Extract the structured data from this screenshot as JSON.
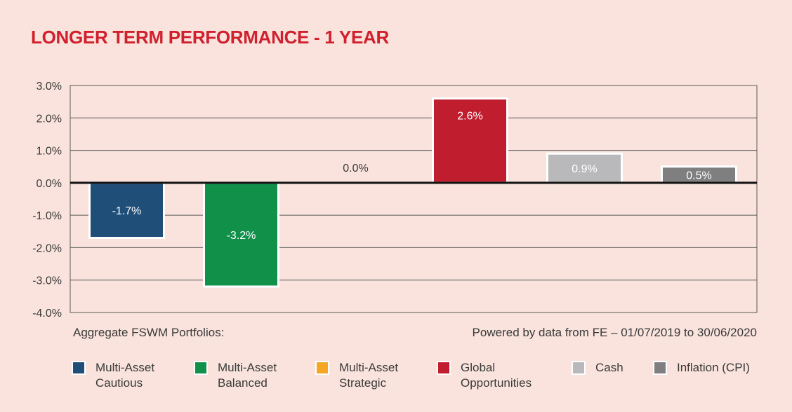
{
  "title": "LONGER TERM PERFORMANCE - 1 YEAR",
  "footer": {
    "left": "Aggregate FSWM Portfolios:",
    "right": "Powered by data from FE – 01/07/2019 to 30/06/2020"
  },
  "legend": [
    {
      "label_line1": "Multi-Asset",
      "label_line2": "Cautious",
      "color": "#1f4e79"
    },
    {
      "label_line1": "Multi-Asset",
      "label_line2": "Balanced",
      "color": "#11904a"
    },
    {
      "label_line1": "Multi-Asset",
      "label_line2": "Strategic",
      "color": "#f5a623"
    },
    {
      "label_line1": "Global",
      "label_line2": "Opportunities",
      "color": "#c01d2e"
    },
    {
      "label_line1": "Cash",
      "label_line2": "",
      "color": "#b9b9bb"
    },
    {
      "label_line1": "Inflation (CPI)",
      "label_line2": "",
      "color": "#7f7f7f"
    }
  ],
  "chart_data": {
    "type": "bar",
    "title": "LONGER TERM PERFORMANCE - 1 YEAR",
    "categories": [
      "Multi-Asset Cautious",
      "Multi-Asset Balanced",
      "Multi-Asset Strategic",
      "Global Opportunities",
      "Cash",
      "Inflation (CPI)"
    ],
    "values": [
      -1.7,
      -3.2,
      0.0,
      2.6,
      0.9,
      0.5
    ],
    "data_labels": [
      "-1.7%",
      "-3.2%",
      "0.0%",
      "2.6%",
      "0.9%",
      "0.5%"
    ],
    "colors": [
      "#1f4e79",
      "#11904a",
      "#f5a623",
      "#c01d2e",
      "#b9b9bb",
      "#7f7f7f"
    ],
    "label_colors": [
      "#ffffff",
      "#ffffff",
      "#3a3a3a",
      "#ffffff",
      "#ffffff",
      "#ffffff"
    ],
    "ylim": [
      -4.0,
      3.0
    ],
    "yticks": [
      3.0,
      2.0,
      1.0,
      0.0,
      -1.0,
      -2.0,
      -3.0,
      -4.0
    ],
    "ytick_labels": [
      "3.0%",
      "2.0%",
      "1.0%",
      "0.0%",
      "-1.0%",
      "-2.0%",
      "-3.0%",
      "-4.0%"
    ],
    "grid": true,
    "legend_position": "bottom",
    "xlabel": "",
    "ylabel": ""
  }
}
